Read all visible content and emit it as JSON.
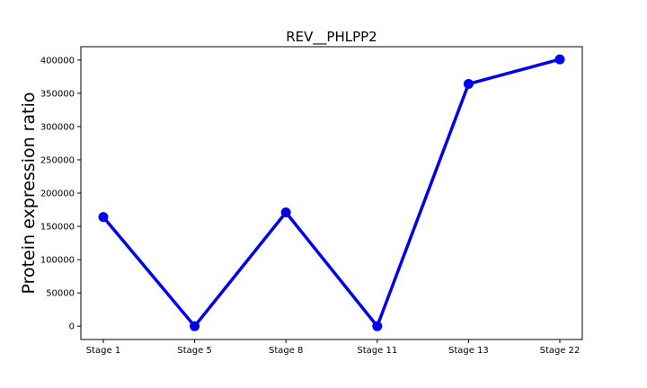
{
  "chart_data": {
    "type": "line",
    "title": "REV__PHLPP2",
    "xlabel": "",
    "ylabel": "Protein expression ratio",
    "categories": [
      "Stage 1",
      "Stage 5",
      "Stage 8",
      "Stage 11",
      "Stage 13",
      "Stage 22"
    ],
    "series": [
      {
        "values": [
          164000,
          0,
          171000,
          0,
          364000,
          401000
        ],
        "color": "#0000ee"
      }
    ],
    "ylim": [
      -20000,
      420000
    ],
    "yticks": [
      0,
      50000,
      100000,
      150000,
      200000,
      250000,
      300000,
      350000,
      400000
    ],
    "grid": false,
    "legend": "none"
  }
}
